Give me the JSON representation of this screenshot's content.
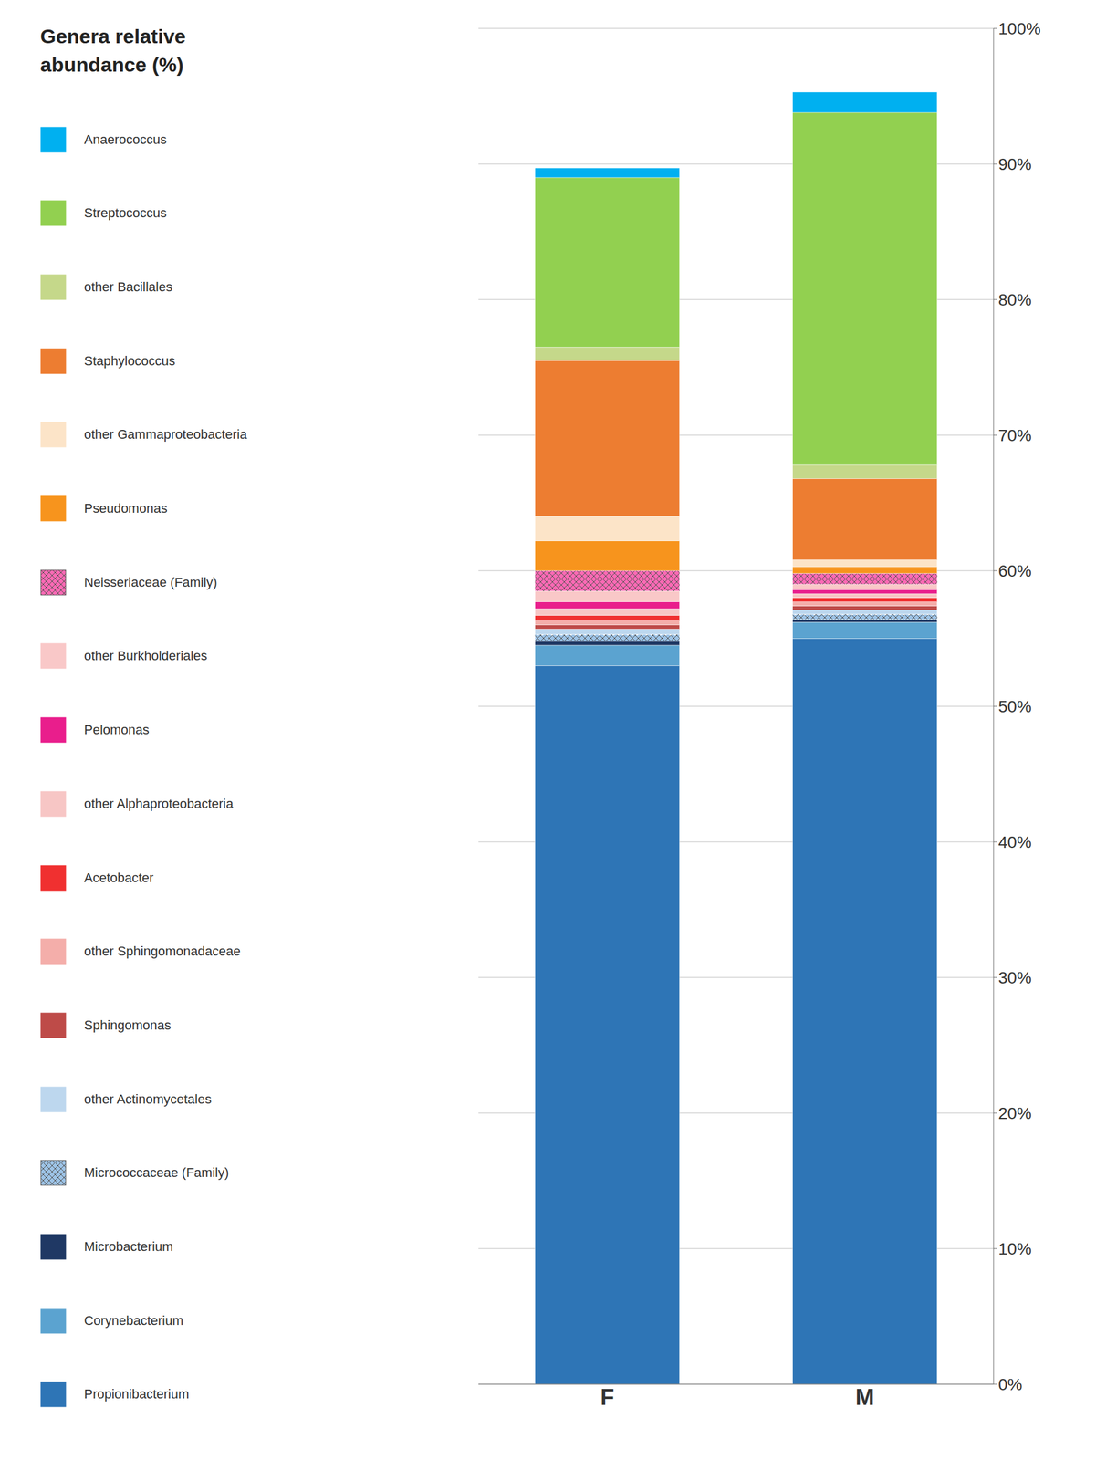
{
  "chart_data": {
    "type": "bar",
    "stacked": true,
    "title": "Genera relative\nabundance (%)",
    "categories": [
      "F",
      "M"
    ],
    "ylim": [
      0,
      1.0
    ],
    "yticks": [
      {
        "value": 0.0,
        "label": "0%"
      },
      {
        "value": 0.1,
        "label": "10%"
      },
      {
        "value": 0.2,
        "label": "20%"
      },
      {
        "value": 0.3,
        "label": "30%"
      },
      {
        "value": 0.4,
        "label": "40%"
      },
      {
        "value": 0.5,
        "label": "50%"
      },
      {
        "value": 0.6,
        "label": "60%"
      },
      {
        "value": 0.7,
        "label": "70%"
      },
      {
        "value": 0.8,
        "label": "80%"
      },
      {
        "value": 0.9,
        "label": "90%"
      },
      {
        "value": 1.0,
        "label": "100%"
      }
    ],
    "grid": true,
    "legend": "left",
    "series": [
      {
        "name": "Propionibacterium",
        "color": "#2E75B6",
        "values": [
          0.53,
          0.55
        ]
      },
      {
        "name": "Corynebacterium",
        "color": "#5BA3D0",
        "values": [
          0.015,
          0.012
        ]
      },
      {
        "name": "Microbacterium",
        "color": "#1F3864",
        "values": [
          0.003,
          0.002
        ]
      },
      {
        "name": "Micrococcaceae (Family)",
        "color": "#9DC3E6",
        "marker": "x",
        "line_style": "dotted",
        "values": [
          0.005,
          0.004
        ]
      },
      {
        "name": "other Actinomycetales",
        "color": "#BDD7EE",
        "values": [
          0.004,
          0.003
        ]
      },
      {
        "name": "Sphingomonas",
        "color": "#BE4B48",
        "values": [
          0.003,
          0.003
        ]
      },
      {
        "name": "other Sphingomonadaceae",
        "color": "#F4AEAA",
        "values": [
          0.003,
          0.003
        ]
      },
      {
        "name": "Acetobacter",
        "color": "#F03030",
        "values": [
          0.004,
          0.003
        ]
      },
      {
        "name": "other Alphaproteobacteria",
        "color": "#F7C6C5",
        "values": [
          0.005,
          0.003
        ]
      },
      {
        "name": "Pelomonas",
        "color": "#E91E8C",
        "values": [
          0.005,
          0.003
        ]
      },
      {
        "name": "other Burkholderiales",
        "color": "#F9C8C8",
        "values": [
          0.008,
          0.004
        ]
      },
      {
        "name": "Neisseriaceae (Family)",
        "color": "#FF69B4",
        "marker": "x",
        "values": [
          0.015,
          0.008
        ]
      },
      {
        "name": "Pseudomonas",
        "color": "#F7941D",
        "values": [
          0.022,
          0.005
        ]
      },
      {
        "name": "other Gammaproteobacteria",
        "color": "#FCE4C8",
        "values": [
          0.018,
          0.005
        ]
      },
      {
        "name": "Staphylococcus",
        "color": "#ED7D31",
        "values": [
          0.115,
          0.06
        ]
      },
      {
        "name": "other Bacillales",
        "color": "#C5D88A",
        "values": [
          0.01,
          0.01
        ]
      },
      {
        "name": "Streptococcus",
        "color": "#92D050",
        "values": [
          0.125,
          0.26
        ]
      },
      {
        "name": "Anaerococcus",
        "color": "#00B0F0",
        "values": [
          0.007,
          0.015
        ]
      }
    ]
  }
}
